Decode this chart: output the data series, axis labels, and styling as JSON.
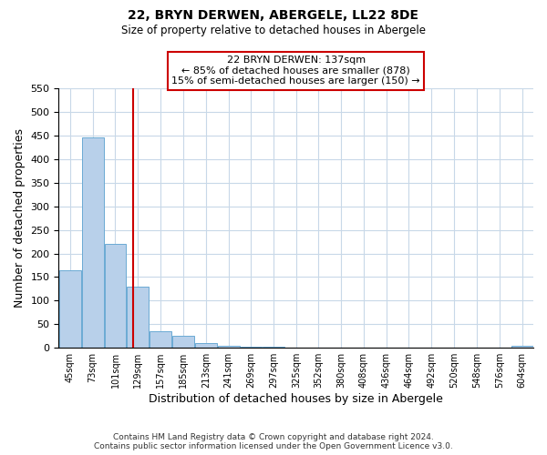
{
  "title": "22, BRYN DERWEN, ABERGELE, LL22 8DE",
  "subtitle": "Size of property relative to detached houses in Abergele",
  "xlabel": "Distribution of detached houses by size in Abergele",
  "ylabel": "Number of detached properties",
  "bin_labels": [
    "45sqm",
    "73sqm",
    "101sqm",
    "129sqm",
    "157sqm",
    "185sqm",
    "213sqm",
    "241sqm",
    "269sqm",
    "297sqm",
    "325sqm",
    "352sqm",
    "380sqm",
    "408sqm",
    "436sqm",
    "464sqm",
    "492sqm",
    "520sqm",
    "548sqm",
    "576sqm",
    "604sqm"
  ],
  "bin_edges": [
    45,
    73,
    101,
    129,
    157,
    185,
    213,
    241,
    269,
    297,
    325,
    352,
    380,
    408,
    436,
    464,
    492,
    520,
    548,
    576,
    604
  ],
  "bin_width": 28,
  "bar_heights": [
    165,
    445,
    220,
    130,
    36,
    25,
    10,
    5,
    2,
    2,
    1,
    0,
    0,
    0,
    0,
    0,
    0,
    0,
    0,
    0,
    5
  ],
  "bar_color": "#b8d0ea",
  "bar_edgecolor": "#6aaad4",
  "vline_x": 137,
  "vline_color": "#cc0000",
  "ylim": [
    0,
    550
  ],
  "yticks": [
    0,
    50,
    100,
    150,
    200,
    250,
    300,
    350,
    400,
    450,
    500,
    550
  ],
  "annotation_title": "22 BRYN DERWEN: 137sqm",
  "annotation_line1": "← 85% of detached houses are smaller (878)",
  "annotation_line2": "15% of semi-detached houses are larger (150) →",
  "annotation_box_color": "#ffffff",
  "annotation_box_edgecolor": "#cc0000",
  "footer_line1": "Contains HM Land Registry data © Crown copyright and database right 2024.",
  "footer_line2": "Contains public sector information licensed under the Open Government Licence v3.0.",
  "background_color": "#ffffff",
  "grid_color": "#c8d8e8"
}
